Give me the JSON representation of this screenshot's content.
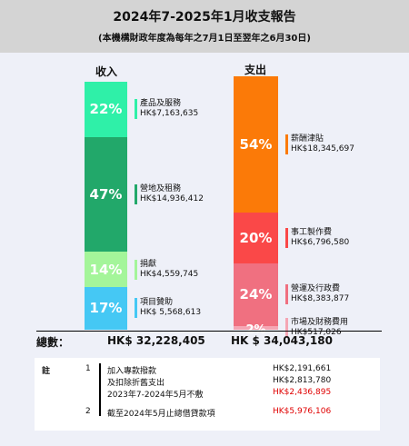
{
  "title": "2024年7-2025年1月收支報告",
  "subtitle": "(本機構財政年度為每年之7月1日至翌年之6月30日)",
  "income": {
    "heading": "收入",
    "segments": [
      {
        "pct": "22%",
        "label": "產品及服務",
        "amount": "HK$7,163,635",
        "color": "#2ff0a8",
        "value": 7163635
      },
      {
        "pct": "47%",
        "label": "營地及租務",
        "amount": "HK$14,936,412",
        "color": "#22a86a",
        "value": 14936412
      },
      {
        "pct": "14%",
        "label": "捐獻",
        "amount": "HK$4,559,745",
        "color": "#a4f59a",
        "value": 4559745
      },
      {
        "pct": "17%",
        "label": "項目贊助",
        "amount": "HK$ 5,568,613",
        "color": "#45c8f4",
        "value": 5568613
      }
    ],
    "total_label": "總數：",
    "total": "HK$ 32,228,405"
  },
  "expense": {
    "heading": "支出",
    "segments": [
      {
        "pct": "54%",
        "label": "薪酬津貼",
        "amount": "HK$18,345,697",
        "color": "#fb7a08",
        "value": 18345697
      },
      {
        "pct": "20%",
        "label": "事工製作費",
        "amount": "HK$6,796,580",
        "color": "#fa4848",
        "value": 6796580
      },
      {
        "pct": "24%",
        "label": "營運及行政費",
        "amount": "HK$8,383,877",
        "color": "#f07080",
        "value": 8383877
      },
      {
        "pct": "2%",
        "label": "市場及財務費用",
        "amount": "HK$517,026",
        "color": "#f5a6b4",
        "value": 517026
      }
    ],
    "total": "HK $ 34,043,180"
  },
  "notes": {
    "label": "註",
    "n1": "1",
    "n2": "2",
    "l1": "加入專款撥款",
    "v1": "HK$2,191,661",
    "l2": "及扣除折舊支出",
    "v2": "HK$2,813,780",
    "l3": "2023年7-2024年5月不敷",
    "v3": "HK$2,436,895",
    "l4": "截至2024年5月止總借貸款項",
    "v4": "HK$5,976,106"
  },
  "chart_data": {
    "type": "bar",
    "categories": [
      "收入",
      "支出"
    ],
    "series": [
      {
        "name": "產品及服務",
        "values": [
          7163635,
          0
        ]
      },
      {
        "name": "營地及租務",
        "values": [
          14936412,
          0
        ]
      },
      {
        "name": "捐獻",
        "values": [
          4559745,
          0
        ]
      },
      {
        "name": "項目贊助",
        "values": [
          5568613,
          0
        ]
      },
      {
        "name": "薪酬津貼",
        "values": [
          0,
          18345697
        ]
      },
      {
        "name": "事工製作費",
        "values": [
          0,
          6796580
        ]
      },
      {
        "name": "營運及行政費",
        "values": [
          0,
          8383877
        ]
      },
      {
        "name": "市場及財務費用",
        "values": [
          0,
          517026
        ]
      }
    ],
    "totals": [
      32228405,
      34043180
    ],
    "title": "2024年7-2025年1月收支報告",
    "stacked": true
  }
}
